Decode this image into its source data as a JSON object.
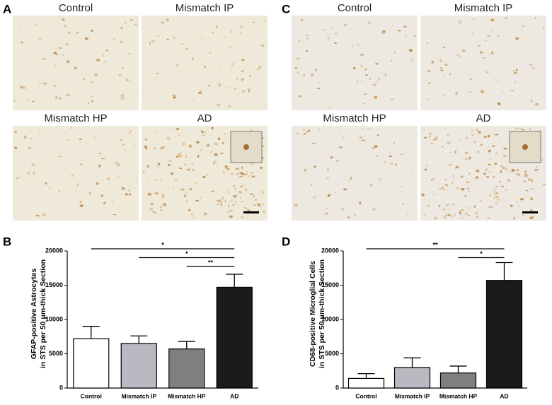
{
  "panels": [
    {
      "label": "A",
      "images": [
        "Control",
        "Mismatch IP",
        "Mismatch HP",
        "AD"
      ]
    },
    {
      "label": "C",
      "images": [
        "Control",
        "Mismatch IP",
        "Mismatch HP",
        "AD"
      ]
    }
  ],
  "chart_data": [
    {
      "type": "bar",
      "label": "B",
      "ylabel": [
        "GFAP-positive Astrocytes",
        "in STS per 50 μm-thick Section"
      ],
      "categories": [
        "Control",
        "Mismatch IP",
        "Mismatch HP",
        "AD"
      ],
      "values": [
        7200,
        6500,
        5700,
        14700
      ],
      "errors": [
        1800,
        1100,
        1100,
        1900
      ],
      "colors": [
        "#ffffff",
        "#b9b9c1",
        "#7f7f7f",
        "#1b1b1b"
      ],
      "ylim": [
        0,
        20000
      ],
      "yticks": [
        0,
        5000,
        10000,
        15000,
        20000
      ],
      "significance": [
        {
          "from": "Control",
          "to": "AD",
          "label": "*"
        },
        {
          "from": "Mismatch IP",
          "to": "AD",
          "label": "*"
        },
        {
          "from": "Mismatch HP",
          "to": "AD",
          "label": "**"
        }
      ]
    },
    {
      "type": "bar",
      "label": "D",
      "ylabel": [
        "CD68-positive Microglial Cells",
        "in STS per 50 μm-thick Section"
      ],
      "categories": [
        "Control",
        "Mismatch IP",
        "Mismatch HP",
        "AD"
      ],
      "values": [
        1400,
        3000,
        2200,
        15700
      ],
      "errors": [
        700,
        1400,
        1000,
        2600
      ],
      "colors": [
        "#ffffff",
        "#b9b9c1",
        "#7f7f7f",
        "#1b1b1b"
      ],
      "ylim": [
        0,
        20000
      ],
      "yticks": [
        0,
        5000,
        10000,
        15000,
        20000
      ],
      "significance": [
        {
          "from": "Control",
          "to": "AD",
          "label": "**"
        },
        {
          "from": "Mismatch HP",
          "to": "AD",
          "label": "*"
        }
      ]
    }
  ]
}
